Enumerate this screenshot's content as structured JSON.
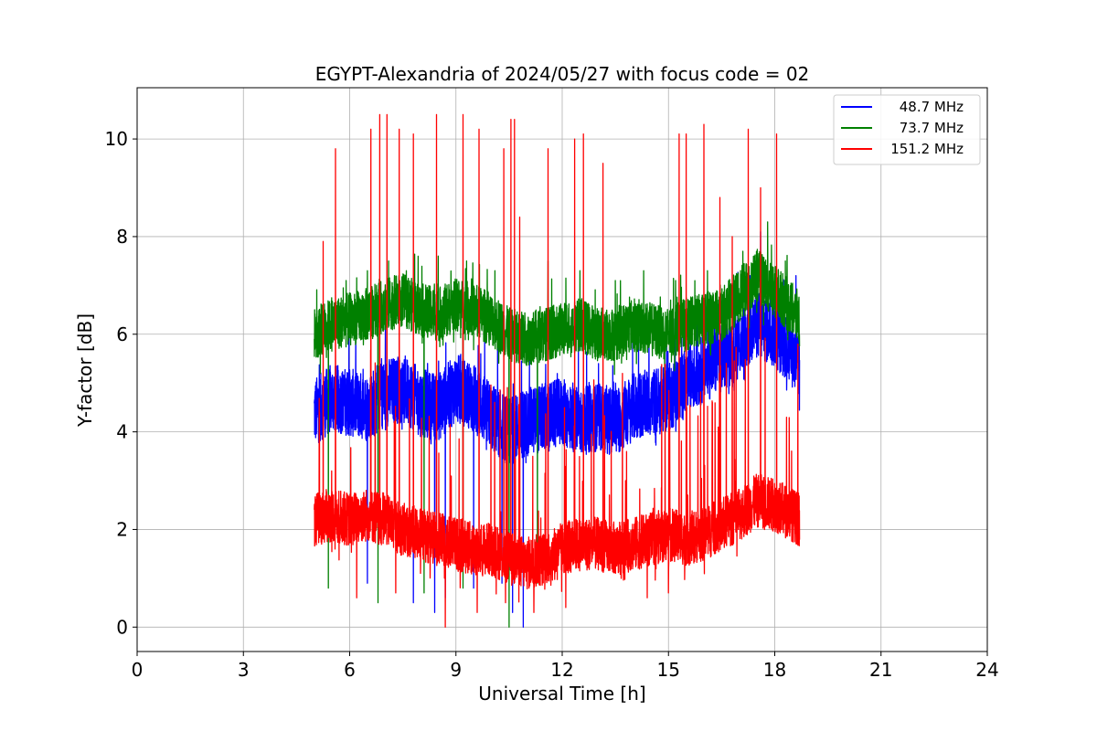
{
  "chart_data": {
    "type": "line",
    "title": "EGYPT-Alexandria of 2024/05/27 with focus code = 02",
    "xlabel": "Universal Time [h]",
    "ylabel": "Y-factor [dB]",
    "xlim": [
      0,
      24
    ],
    "ylim": [
      -0.5,
      11.05
    ],
    "xticks": [
      0,
      3,
      6,
      9,
      12,
      15,
      18,
      21,
      24
    ],
    "yticks": [
      0,
      2,
      4,
      6,
      8,
      10
    ],
    "grid": true,
    "legend_position": "top-right",
    "series": [
      {
        "name": "48.7 MHz",
        "color": "#0000ff",
        "x": [
          5.0,
          5.5,
          6.0,
          6.5,
          7.0,
          7.5,
          8.0,
          8.5,
          9.0,
          9.5,
          10.0,
          10.5,
          11.0,
          11.5,
          12.0,
          12.5,
          13.0,
          13.5,
          14.0,
          14.5,
          15.0,
          15.5,
          16.0,
          16.5,
          17.0,
          17.5,
          18.0,
          18.5,
          18.7
        ],
        "values": [
          4.4,
          4.7,
          4.6,
          4.5,
          4.8,
          4.9,
          4.6,
          4.5,
          4.9,
          4.7,
          4.3,
          4.0,
          4.2,
          4.3,
          4.4,
          4.2,
          4.3,
          4.2,
          4.5,
          4.6,
          4.7,
          5.0,
          5.3,
          5.5,
          5.8,
          6.2,
          6.0,
          5.6,
          5.3
        ],
        "spikes": [
          [
            5.4,
            5.2
          ],
          [
            6.9,
            5.5
          ],
          [
            8.2,
            5.4
          ],
          [
            9.7,
            5.6
          ],
          [
            10.6,
            6.8
          ],
          [
            12.3,
            5.0
          ],
          [
            15.8,
            6.6
          ],
          [
            16.3,
            6.5
          ],
          [
            17.3,
            7.2
          ],
          [
            17.6,
            8.1
          ],
          [
            18.1,
            6.9
          ],
          [
            18.6,
            7.2
          ]
        ],
        "dips": [
          [
            6.5,
            0.9
          ],
          [
            7.8,
            0.5
          ],
          [
            8.4,
            0.3
          ],
          [
            8.7,
            0.6
          ],
          [
            9.5,
            0.8
          ],
          [
            10.3,
            0.9
          ],
          [
            10.6,
            0.3
          ],
          [
            10.9,
            0.0
          ]
        ]
      },
      {
        "name": "73.7 MHz",
        "color": "#008000",
        "x": [
          5.0,
          5.5,
          6.0,
          6.5,
          7.0,
          7.5,
          8.0,
          8.5,
          9.0,
          9.5,
          10.0,
          10.5,
          11.0,
          11.5,
          12.0,
          12.5,
          13.0,
          13.5,
          14.0,
          14.5,
          15.0,
          15.5,
          16.0,
          16.5,
          17.0,
          17.5,
          18.0,
          18.5,
          18.7
        ],
        "values": [
          6.0,
          6.2,
          6.3,
          6.4,
          6.6,
          6.7,
          6.5,
          6.4,
          6.6,
          6.5,
          6.3,
          6.0,
          5.9,
          6.0,
          6.1,
          6.2,
          6.0,
          6.0,
          6.2,
          6.1,
          6.0,
          6.2,
          6.3,
          6.4,
          6.8,
          7.2,
          6.9,
          6.5,
          6.3
        ],
        "spikes": [
          [
            5.9,
            7.1
          ],
          [
            6.5,
            7.3
          ],
          [
            7.1,
            7.5
          ],
          [
            7.6,
            7.3
          ],
          [
            8.5,
            7.6
          ],
          [
            9.3,
            7.5
          ],
          [
            10.1,
            7.3
          ],
          [
            11.6,
            7.5
          ],
          [
            12.5,
            7.3
          ],
          [
            13.5,
            7.1
          ],
          [
            14.3,
            7.3
          ],
          [
            15.2,
            7.1
          ],
          [
            16.1,
            7.3
          ],
          [
            17.1,
            7.7
          ],
          [
            17.8,
            8.3
          ],
          [
            18.3,
            7.5
          ]
        ],
        "dips": [
          [
            5.4,
            0.8
          ],
          [
            6.8,
            0.5
          ],
          [
            8.1,
            0.7
          ],
          [
            9.2,
            0.8
          ],
          [
            10.5,
            0.0
          ],
          [
            11.3,
            0.9
          ]
        ]
      },
      {
        "name": "151.2 MHz",
        "color": "#ff0000",
        "x": [
          5.0,
          5.5,
          6.0,
          6.5,
          7.0,
          7.5,
          8.0,
          8.5,
          9.0,
          9.5,
          10.0,
          10.5,
          11.0,
          11.5,
          12.0,
          12.5,
          13.0,
          13.5,
          14.0,
          14.5,
          15.0,
          15.5,
          16.0,
          16.5,
          17.0,
          17.5,
          18.0,
          18.5,
          18.7
        ],
        "values": [
          2.2,
          2.3,
          2.2,
          2.3,
          2.2,
          2.0,
          1.9,
          1.8,
          1.7,
          1.6,
          1.6,
          1.4,
          1.3,
          1.4,
          1.6,
          1.7,
          1.7,
          1.6,
          1.7,
          1.8,
          1.9,
          1.8,
          1.9,
          2.1,
          2.3,
          2.6,
          2.5,
          2.3,
          2.2
        ],
        "spikes": [
          [
            5.25,
            7.9
          ],
          [
            5.6,
            9.8
          ],
          [
            6.6,
            10.2
          ],
          [
            6.85,
            10.5
          ],
          [
            7.05,
            10.5
          ],
          [
            7.4,
            10.2
          ],
          [
            7.8,
            10.1
          ],
          [
            8.45,
            10.5
          ],
          [
            9.2,
            10.5
          ],
          [
            9.65,
            10.2
          ],
          [
            10.35,
            9.8
          ],
          [
            10.55,
            10.4
          ],
          [
            10.65,
            10.4
          ],
          [
            10.8,
            8.4
          ],
          [
            11.6,
            9.8
          ],
          [
            12.35,
            10.0
          ],
          [
            12.6,
            10.1
          ],
          [
            13.15,
            9.5
          ],
          [
            15.3,
            10.1
          ],
          [
            15.5,
            10.1
          ],
          [
            16.0,
            10.3
          ],
          [
            16.45,
            8.8
          ],
          [
            17.25,
            10.2
          ],
          [
            18.05,
            10.1
          ],
          [
            16.8,
            8.0
          ],
          [
            17.6,
            9.0
          ]
        ],
        "dips": [
          [
            6.2,
            0.6
          ],
          [
            7.3,
            0.7
          ],
          [
            8.7,
            0.0
          ],
          [
            9.6,
            0.3
          ],
          [
            10.4,
            0.5
          ],
          [
            11.2,
            0.3
          ],
          [
            12.1,
            0.4
          ],
          [
            14.4,
            0.6
          ],
          [
            15.0,
            0.7
          ]
        ]
      }
    ]
  }
}
